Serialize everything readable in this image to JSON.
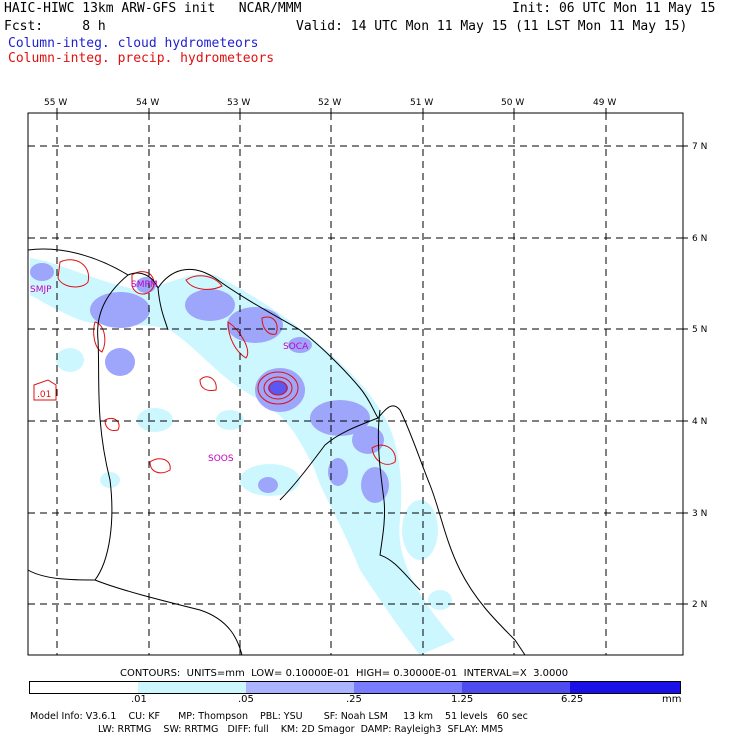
{
  "header": {
    "line1_left": "HAIC-HIWC 13km ARW-GFS init   NCAR/MMM",
    "line1_right": "Init: 06 UTC Mon 11 May 15",
    "line2_left": "Fcst:     8 h",
    "line2_right": "Valid: 14 UTC Mon 11 May 15 (11 LST Mon 11 May 15)",
    "line3": "Column-integ. cloud hydrometeors",
    "line4": "Column-integ. precip. hydrometeors"
  },
  "map": {
    "lon_labels": [
      "55 W",
      "54 W",
      "53 W",
      "52 W",
      "51 W",
      "50 W",
      "49 W"
    ],
    "lat_labels": [
      "7 N",
      "6 N",
      "5 N",
      "4 N",
      "3 N",
      "2 N"
    ],
    "stations": [
      "SMJP",
      "SOCA",
      "SOOS",
      "SMPM"
    ],
    "contour_label": ".01"
  },
  "contours_line": "CONTOURS:  UNITS=mm  LOW= 0.10000E-01  HIGH= 0.30000E-01  INTERVAL=X  3.0000",
  "colorbar": {
    "ticks": [
      ".01",
      ".05",
      ".25",
      "1.25",
      "6.25"
    ],
    "unit": "mm",
    "colors": [
      "#ffffff",
      "#cdf7ff",
      "#aab4ff",
      "#7a7cff",
      "#4e4cf0",
      "#1a10e8"
    ]
  },
  "model_info": {
    "line1": "Model Info: V3.6.1    CU: KF      MP: Thompson    PBL: YSU       SF: Noah LSM     13 km    51 levels   60 sec",
    "line2": "LW: RRTMG    SW: RRTMG   DIFF: full    KM: 2D Smagor  DAMP: Rayleigh3  SFLAY: MM5"
  }
}
